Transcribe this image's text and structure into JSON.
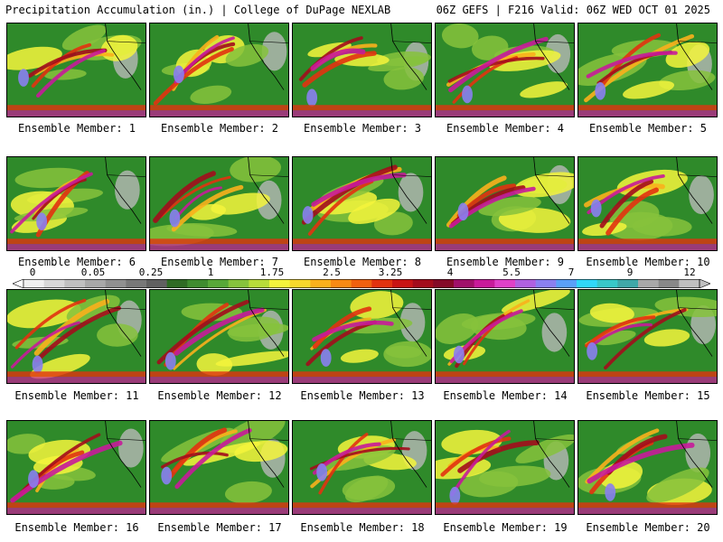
{
  "header": {
    "left": "Precipitation Accumulation (in.) | College of DuPage NEXLAB",
    "right": "06Z GEFS | F216 Valid: 06Z WED OCT 01 2025"
  },
  "panel_label_prefix": "Ensemble Member: ",
  "members": [
    1,
    2,
    3,
    4,
    5,
    6,
    7,
    8,
    9,
    10,
    11,
    12,
    13,
    14,
    15,
    16,
    17,
    18,
    19,
    20
  ],
  "colorbar": {
    "tick_labels": [
      "0",
      "0.05",
      "0.25",
      "1",
      "1.75",
      "2.5",
      "3.25",
      "4",
      "5.5",
      "7",
      "9",
      "12"
    ],
    "colors": [
      "#f0f0f0",
      "#d8d8d8",
      "#c0c0c0",
      "#a8a8a8",
      "#909090",
      "#787878",
      "#606060",
      "#2f6b24",
      "#3f8c2f",
      "#58a838",
      "#86c23c",
      "#b8dc3a",
      "#f4f43c",
      "#f8d82c",
      "#fab01c",
      "#f88a14",
      "#f0600f",
      "#e2320f",
      "#c81414",
      "#a30c1c",
      "#850a28",
      "#a0106a",
      "#c81a9a",
      "#e040c8",
      "#b060e0",
      "#8a80f0",
      "#5aa0f8",
      "#30d8f8",
      "#38c8c8",
      "#40a8a8",
      "#a8a8a8",
      "#888888",
      "#c0c0c0"
    ]
  },
  "precip_palette": {
    "green": "#2f8a2a",
    "lightgreen": "#86c23c",
    "yellow": "#f4f43c",
    "orange": "#fab01c",
    "red": "#e2320f",
    "darkred": "#a30c1c",
    "magenta": "#c81a9a",
    "purple": "#8a80f0",
    "gray": "#b8b8b8"
  }
}
